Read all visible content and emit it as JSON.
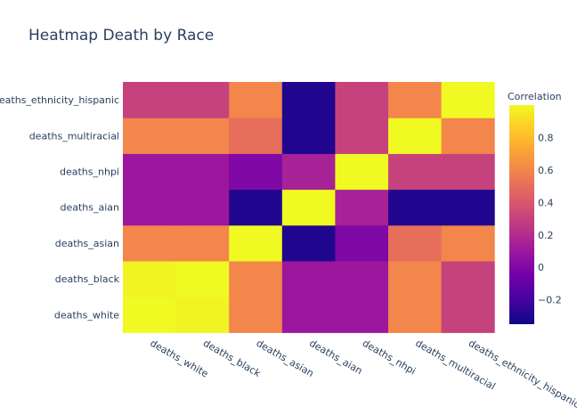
{
  "chart_data": {
    "type": "heatmap",
    "title": "Heatmap Death by Race",
    "x_categories": [
      "deaths_white",
      "deaths_black",
      "deaths_asian",
      "deaths_aian",
      "deaths_nhpi",
      "deaths_multiracial",
      "deaths_ethnicity_hispanic"
    ],
    "y_categories": [
      "deaths_white",
      "deaths_black",
      "deaths_asian",
      "deaths_aian",
      "deaths_nhpi",
      "deaths_multiracial",
      "deaths_ethnicity_hispanic"
    ],
    "z": [
      [
        1.0,
        0.98,
        0.6,
        0.1,
        0.1,
        0.6,
        0.3
      ],
      [
        0.98,
        1.0,
        0.6,
        0.1,
        0.1,
        0.6,
        0.3
      ],
      [
        0.6,
        0.6,
        1.0,
        -0.3,
        0.0,
        0.5,
        0.6
      ],
      [
        0.1,
        0.1,
        -0.3,
        1.0,
        0.15,
        -0.3,
        -0.3
      ],
      [
        0.1,
        0.1,
        0.0,
        0.15,
        1.0,
        0.3,
        0.3
      ],
      [
        0.6,
        0.6,
        0.5,
        -0.3,
        0.3,
        1.0,
        0.6
      ],
      [
        0.3,
        0.3,
        0.6,
        -0.3,
        0.3,
        0.6,
        1.0
      ]
    ],
    "colorbar": {
      "title": "Correlation",
      "tickvals": [
        0.8,
        0.6,
        0.4,
        0.2,
        0,
        -0.2
      ],
      "ticktext": [
        "0.8",
        "0.6",
        "0.4",
        "0.2",
        "0",
        "−0.2"
      ],
      "range": [
        -0.35,
        1.0
      ]
    },
    "colorscale": [
      "#0d0887",
      "#46039f",
      "#7201a8",
      "#9c179e",
      "#bd3786",
      "#d8576b",
      "#ed7953",
      "#fb9f3a",
      "#fdca26",
      "#f0f921"
    ],
    "grid": false
  }
}
